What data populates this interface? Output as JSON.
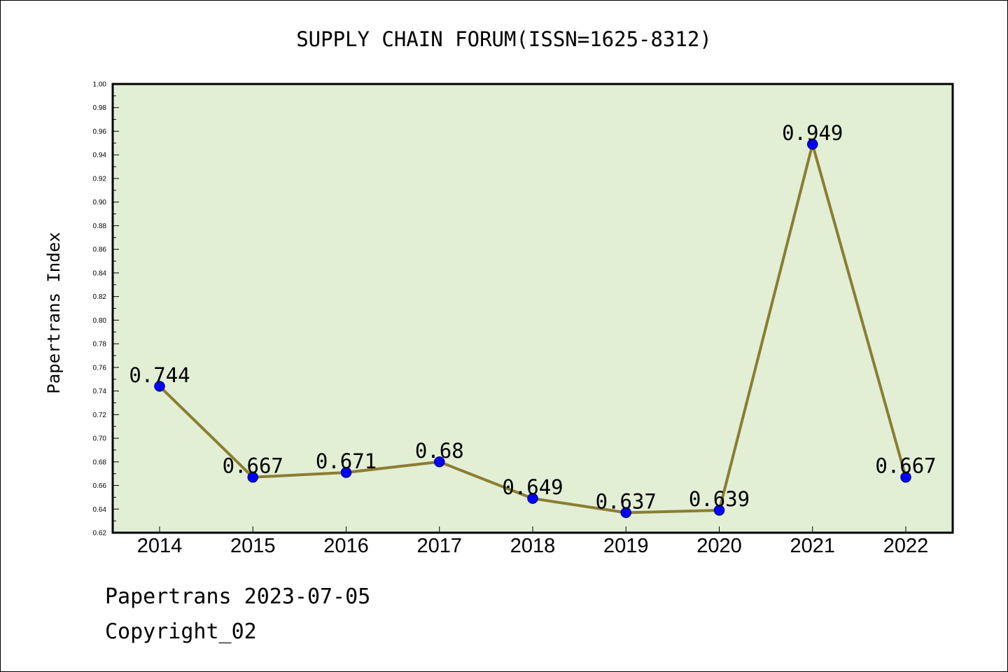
{
  "chart_data": {
    "type": "line",
    "title": "SUPPLY CHAIN FORUM(ISSN=1625-8312)",
    "xlabel": "",
    "ylabel": "Papertrans Index",
    "categories": [
      "2014",
      "2015",
      "2016",
      "2017",
      "2018",
      "2019",
      "2020",
      "2021",
      "2022"
    ],
    "values": [
      0.744,
      0.667,
      0.671,
      0.68,
      0.649,
      0.637,
      0.639,
      0.949,
      0.667
    ],
    "data_labels": [
      "0.744",
      "0.667",
      "0.671",
      "0.68",
      "0.649",
      "0.637",
      "0.639",
      "0.949",
      "0.667"
    ],
    "ylim": [
      0.62,
      1.0
    ],
    "yticks": [
      "0.62",
      "0.64",
      "0.66",
      "0.68",
      "0.70",
      "0.72",
      "0.74",
      "0.76",
      "0.78",
      "0.80",
      "0.82",
      "0.84",
      "0.86",
      "0.88",
      "0.90",
      "0.92",
      "0.94",
      "0.96",
      "0.98",
      "1.00"
    ],
    "grid": false,
    "colors": {
      "plot_background": "#e2efd5",
      "line": "#8b7d32",
      "marker": "#0000ff",
      "marker_edge": "#00008b"
    }
  },
  "footer": {
    "line1": "Papertrans 2023-07-05",
    "line2": "Copyright_02"
  }
}
